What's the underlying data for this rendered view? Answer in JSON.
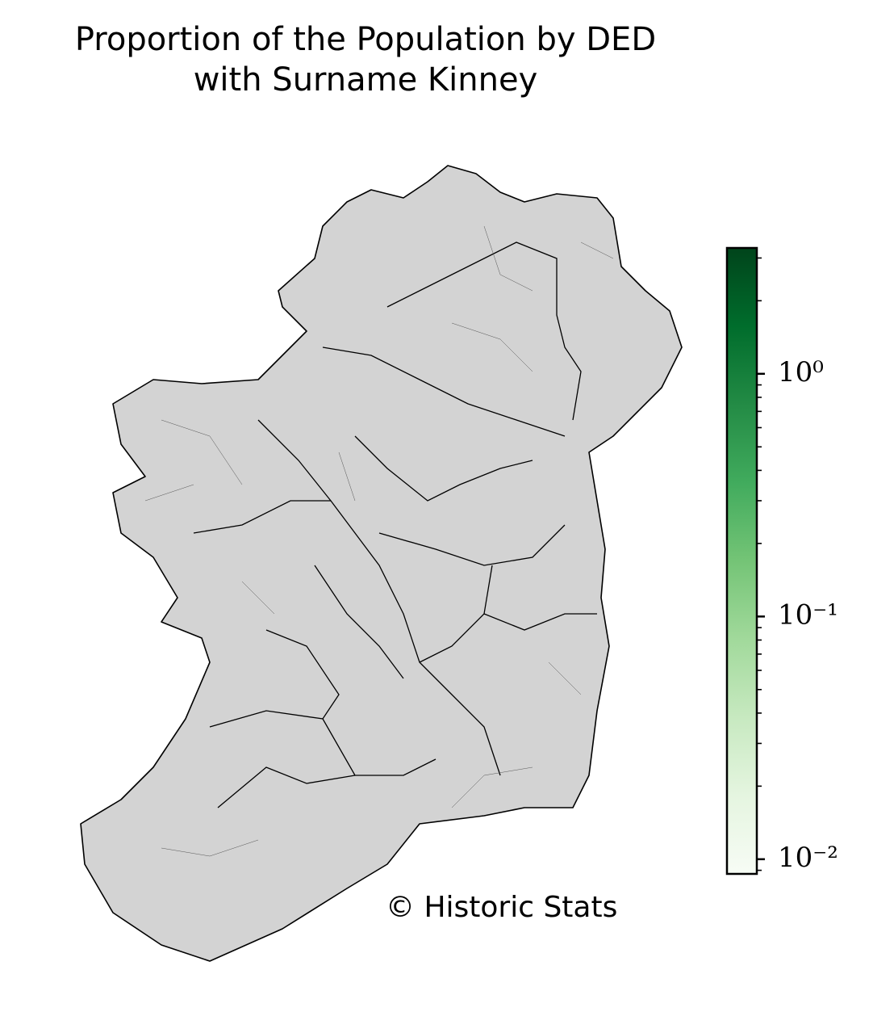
{
  "chart_data": {
    "type": "choropleth",
    "title": [
      "Proportion of the Population by DED",
      "with Surname Kinney"
    ],
    "annotation": "© Historic Stats",
    "colorbar": {
      "scale": "log",
      "clim": [
        0.0087,
        3.3
      ],
      "colormap": [
        "#f7fcf5",
        "#e5f5e0",
        "#c7e9c0",
        "#a1d99b",
        "#74c476",
        "#41ab5d",
        "#238b45",
        "#006d2c",
        "#00441b"
      ],
      "yticks": [
        {
          "value": 0.01,
          "label": "10⁻²"
        },
        {
          "value": 0.1,
          "label": "10⁻¹"
        },
        {
          "value": 1,
          "label": "10⁰"
        }
      ],
      "minor_yticks": [
        0.009,
        0.02,
        0.03,
        0.04,
        0.05,
        0.06,
        0.07,
        0.08,
        0.09,
        0.2,
        0.3,
        0.4,
        0.5,
        0.6,
        0.7,
        0.8,
        0.9,
        2,
        3
      ]
    }
  }
}
